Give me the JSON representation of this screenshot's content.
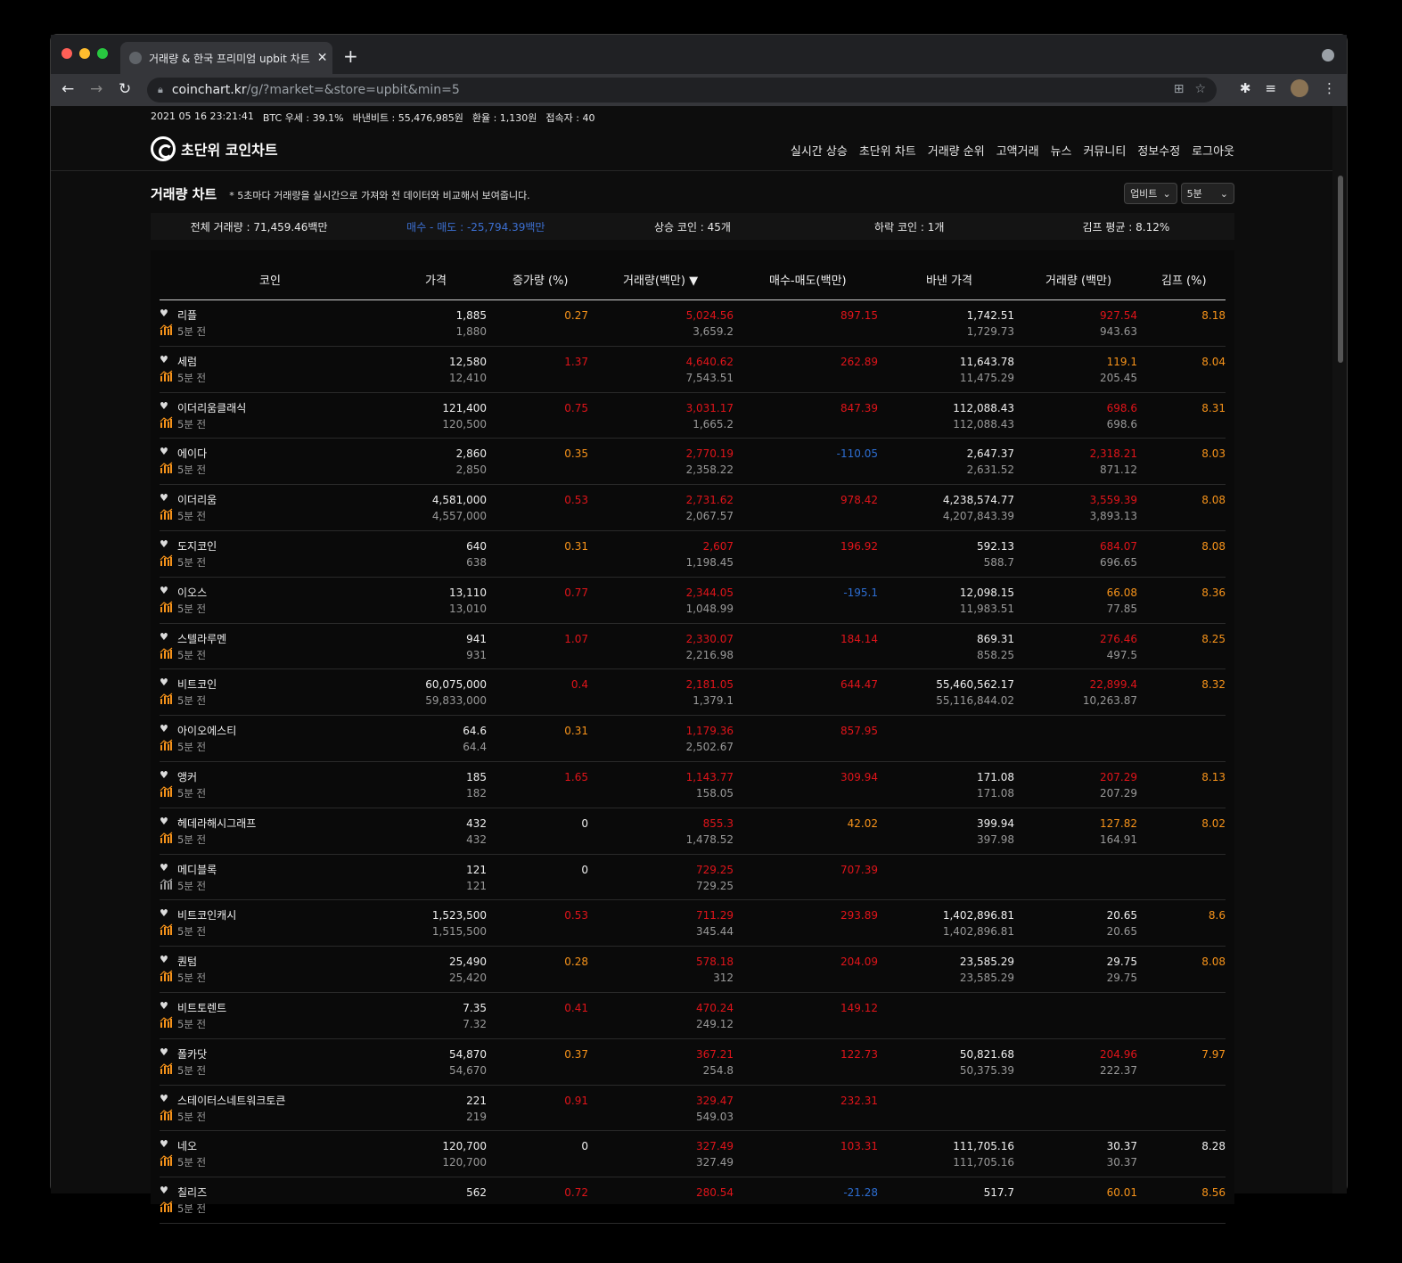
{
  "browser": {
    "tab_title": "거래량 & 한국 프리미엄 upbit 차트",
    "url_host": "coinchart.kr",
    "url_path": "/g/?market=&store=upbit&min=5"
  },
  "infobar": {
    "datetime": "2021 05 16 23:21:41",
    "btc_dominance": "BTC 우세 : 39.1%",
    "binance_btc": "바낸비트 : 55,476,985원",
    "exchange_rate": "환율 : 1,130원",
    "users": "접속자 : 40"
  },
  "logo": {
    "text": "초단위 코인차트"
  },
  "nav": [
    "실시간 상승",
    "초단위 차트",
    "거래량 순위",
    "고액거래",
    "뉴스",
    "커뮤니티",
    "정보수정",
    "로그아웃"
  ],
  "section": {
    "title": "거래량 차트",
    "note": "* 5초마다 거래량을 실시간으로 가져와 전 데이터와 비교해서 보여줍니다.",
    "exchange_select": "업비트",
    "interval_select": "5분"
  },
  "summary": {
    "total": "전체 거래량 : 71,459.46백만",
    "buy_sell": "매수 - 매도 : -25,794.39백만",
    "up": "상승 코인 : 45개",
    "down": "하락 코인 : 1개",
    "kimp": "김프 평균 : 8.12%"
  },
  "table": {
    "headers": {
      "coin": "코인",
      "price": "가격",
      "rate": "증가량 (%)",
      "volume": "거래량(백만) ▼",
      "diff": "매수-매도(백만)",
      "binance_price": "바낸 가격",
      "binance_volume": "거래량 (백만)",
      "kimp": "김프 (%)"
    },
    "ago_label": "5분 전",
    "rows": [
      {
        "name": "리플",
        "price": "1,885",
        "price_prev": "1,880",
        "rate": "0.27",
        "rate_c": "orange",
        "vol": "5,024.56",
        "vol_c": "red",
        "vol_prev": "3,659.2",
        "diff": "897.15",
        "diff_c": "red",
        "bin": "1,742.51",
        "bin_prev": "1,729.73",
        "bvol": "927.54",
        "bvol_c": "red",
        "bvol_prev": "943.63",
        "kimp": "8.18",
        "kimp_c": "orange",
        "icon_c": "orange"
      },
      {
        "name": "세럼",
        "price": "12,580",
        "price_prev": "12,410",
        "rate": "1.37",
        "rate_c": "red",
        "vol": "4,640.62",
        "vol_c": "red",
        "vol_prev": "7,543.51",
        "diff": "262.89",
        "diff_c": "red",
        "bin": "11,643.78",
        "bin_prev": "11,475.29",
        "bvol": "119.1",
        "bvol_c": "orange",
        "bvol_prev": "205.45",
        "kimp": "8.04",
        "kimp_c": "orange",
        "icon_c": "orange"
      },
      {
        "name": "이더리움클래식",
        "price": "121,400",
        "price_prev": "120,500",
        "rate": "0.75",
        "rate_c": "red",
        "vol": "3,031.17",
        "vol_c": "red",
        "vol_prev": "1,665.2",
        "diff": "847.39",
        "diff_c": "red",
        "bin": "112,088.43",
        "bin_prev": "112,088.43",
        "bvol": "698.6",
        "bvol_c": "red",
        "bvol_prev": "698.6",
        "kimp": "8.31",
        "kimp_c": "orange",
        "icon_c": "orange"
      },
      {
        "name": "에이다",
        "price": "2,860",
        "price_prev": "2,850",
        "rate": "0.35",
        "rate_c": "orange",
        "vol": "2,770.19",
        "vol_c": "red",
        "vol_prev": "2,358.22",
        "diff": "-110.05",
        "diff_c": "blue",
        "bin": "2,647.37",
        "bin_prev": "2,631.52",
        "bvol": "2,318.21",
        "bvol_c": "red",
        "bvol_prev": "871.12",
        "kimp": "8.03",
        "kimp_c": "orange",
        "icon_c": "orange"
      },
      {
        "name": "이더리움",
        "price": "4,581,000",
        "price_prev": "4,557,000",
        "rate": "0.53",
        "rate_c": "red",
        "vol": "2,731.62",
        "vol_c": "red",
        "vol_prev": "2,067.57",
        "diff": "978.42",
        "diff_c": "red",
        "bin": "4,238,574.77",
        "bin_prev": "4,207,843.39",
        "bvol": "3,559.39",
        "bvol_c": "red",
        "bvol_prev": "3,893.13",
        "kimp": "8.08",
        "kimp_c": "orange",
        "icon_c": "orange"
      },
      {
        "name": "도지코인",
        "price": "640",
        "price_prev": "638",
        "rate": "0.31",
        "rate_c": "orange",
        "vol": "2,607",
        "vol_c": "red",
        "vol_prev": "1,198.45",
        "diff": "196.92",
        "diff_c": "red",
        "bin": "592.13",
        "bin_prev": "588.7",
        "bvol": "684.07",
        "bvol_c": "red",
        "bvol_prev": "696.65",
        "kimp": "8.08",
        "kimp_c": "orange",
        "icon_c": "orange"
      },
      {
        "name": "이오스",
        "price": "13,110",
        "price_prev": "13,010",
        "rate": "0.77",
        "rate_c": "red",
        "vol": "2,344.05",
        "vol_c": "red",
        "vol_prev": "1,048.99",
        "diff": "-195.1",
        "diff_c": "blue",
        "bin": "12,098.15",
        "bin_prev": "11,983.51",
        "bvol": "66.08",
        "bvol_c": "orange",
        "bvol_prev": "77.85",
        "kimp": "8.36",
        "kimp_c": "orange",
        "icon_c": "orange"
      },
      {
        "name": "스텔라루멘",
        "price": "941",
        "price_prev": "931",
        "rate": "1.07",
        "rate_c": "red",
        "vol": "2,330.07",
        "vol_c": "red",
        "vol_prev": "2,216.98",
        "diff": "184.14",
        "diff_c": "red",
        "bin": "869.31",
        "bin_prev": "858.25",
        "bvol": "276.46",
        "bvol_c": "red",
        "bvol_prev": "497.5",
        "kimp": "8.25",
        "kimp_c": "orange",
        "icon_c": "orange"
      },
      {
        "name": "비트코인",
        "price": "60,075,000",
        "price_prev": "59,833,000",
        "rate": "0.4",
        "rate_c": "red",
        "vol": "2,181.05",
        "vol_c": "red",
        "vol_prev": "1,379.1",
        "diff": "644.47",
        "diff_c": "red",
        "bin": "55,460,562.17",
        "bin_prev": "55,116,844.02",
        "bvol": "22,899.4",
        "bvol_c": "red",
        "bvol_prev": "10,263.87",
        "kimp": "8.32",
        "kimp_c": "orange",
        "icon_c": "orange"
      },
      {
        "name": "아이오에스티",
        "price": "64.6",
        "price_prev": "64.4",
        "rate": "0.31",
        "rate_c": "orange",
        "vol": "1,179.36",
        "vol_c": "red",
        "vol_prev": "2,502.67",
        "diff": "857.95",
        "diff_c": "red",
        "bin": "",
        "bin_prev": "",
        "bvol": "",
        "bvol_c": "white",
        "bvol_prev": "",
        "kimp": "",
        "kimp_c": "orange",
        "icon_c": "orange"
      },
      {
        "name": "앵커",
        "price": "185",
        "price_prev": "182",
        "rate": "1.65",
        "rate_c": "red",
        "vol": "1,143.77",
        "vol_c": "red",
        "vol_prev": "158.05",
        "diff": "309.94",
        "diff_c": "red",
        "bin": "171.08",
        "bin_prev": "171.08",
        "bvol": "207.29",
        "bvol_c": "red",
        "bvol_prev": "207.29",
        "kimp": "8.13",
        "kimp_c": "orange",
        "icon_c": "orange"
      },
      {
        "name": "헤데라해시그래프",
        "price": "432",
        "price_prev": "432",
        "rate": "0",
        "rate_c": "white",
        "vol": "855.3",
        "vol_c": "red",
        "vol_prev": "1,478.52",
        "diff": "42.02",
        "diff_c": "orange",
        "bin": "399.94",
        "bin_prev": "397.98",
        "bvol": "127.82",
        "bvol_c": "orange",
        "bvol_prev": "164.91",
        "kimp": "8.02",
        "kimp_c": "orange",
        "icon_c": "orange"
      },
      {
        "name": "메디블록",
        "price": "121",
        "price_prev": "121",
        "rate": "0",
        "rate_c": "white",
        "vol": "729.25",
        "vol_c": "red",
        "vol_prev": "729.25",
        "diff": "707.39",
        "diff_c": "red",
        "bin": "",
        "bin_prev": "",
        "bvol": "",
        "bvol_c": "white",
        "bvol_prev": "",
        "kimp": "",
        "kimp_c": "orange",
        "icon_c": "grey"
      },
      {
        "name": "비트코인캐시",
        "price": "1,523,500",
        "price_prev": "1,515,500",
        "rate": "0.53",
        "rate_c": "red",
        "vol": "711.29",
        "vol_c": "red",
        "vol_prev": "345.44",
        "diff": "293.89",
        "diff_c": "red",
        "bin": "1,402,896.81",
        "bin_prev": "1,402,896.81",
        "bvol": "20.65",
        "bvol_c": "white",
        "bvol_prev": "20.65",
        "kimp": "8.6",
        "kimp_c": "orange",
        "icon_c": "orange"
      },
      {
        "name": "퀀텀",
        "price": "25,490",
        "price_prev": "25,420",
        "rate": "0.28",
        "rate_c": "orange",
        "vol": "578.18",
        "vol_c": "red",
        "vol_prev": "312",
        "diff": "204.09",
        "diff_c": "red",
        "bin": "23,585.29",
        "bin_prev": "23,585.29",
        "bvol": "29.75",
        "bvol_c": "white",
        "bvol_prev": "29.75",
        "kimp": "8.08",
        "kimp_c": "orange",
        "icon_c": "orange"
      },
      {
        "name": "비트토렌트",
        "price": "7.35",
        "price_prev": "7.32",
        "rate": "0.41",
        "rate_c": "red",
        "vol": "470.24",
        "vol_c": "red",
        "vol_prev": "249.12",
        "diff": "149.12",
        "diff_c": "red",
        "bin": "",
        "bin_prev": "",
        "bvol": "",
        "bvol_c": "white",
        "bvol_prev": "",
        "kimp": "",
        "kimp_c": "orange",
        "icon_c": "orange"
      },
      {
        "name": "폴카닷",
        "price": "54,870",
        "price_prev": "54,670",
        "rate": "0.37",
        "rate_c": "orange",
        "vol": "367.21",
        "vol_c": "red",
        "vol_prev": "254.8",
        "diff": "122.73",
        "diff_c": "red",
        "bin": "50,821.68",
        "bin_prev": "50,375.39",
        "bvol": "204.96",
        "bvol_c": "red",
        "bvol_prev": "222.37",
        "kimp": "7.97",
        "kimp_c": "orange",
        "icon_c": "orange"
      },
      {
        "name": "스테이터스네트워크토큰",
        "price": "221",
        "price_prev": "219",
        "rate": "0.91",
        "rate_c": "red",
        "vol": "329.47",
        "vol_c": "red",
        "vol_prev": "549.03",
        "diff": "232.31",
        "diff_c": "red",
        "bin": "",
        "bin_prev": "",
        "bvol": "",
        "bvol_c": "white",
        "bvol_prev": "",
        "kimp": "",
        "kimp_c": "orange",
        "icon_c": "orange"
      },
      {
        "name": "네오",
        "price": "120,700",
        "price_prev": "120,700",
        "rate": "0",
        "rate_c": "white",
        "vol": "327.49",
        "vol_c": "red",
        "vol_prev": "327.49",
        "diff": "103.31",
        "diff_c": "red",
        "bin": "111,705.16",
        "bin_prev": "111,705.16",
        "bvol": "30.37",
        "bvol_c": "white",
        "bvol_prev": "30.37",
        "kimp": "8.28",
        "kimp_c": "white",
        "icon_c": "orange"
      },
      {
        "name": "칠리즈",
        "price": "562",
        "price_prev": "",
        "rate": "0.72",
        "rate_c": "red",
        "vol": "280.54",
        "vol_c": "red",
        "vol_prev": "",
        "diff": "-21.28",
        "diff_c": "blue",
        "bin": "517.7",
        "bin_prev": "",
        "bvol": "60.01",
        "bvol_c": "orange",
        "bvol_prev": "",
        "kimp": "8.56",
        "kimp_c": "orange",
        "icon_c": "orange"
      }
    ]
  },
  "colors": {
    "red": "#e0141a",
    "orange": "#f7931a",
    "blue": "#2d6ed3",
    "background": "#0d0d0d"
  }
}
